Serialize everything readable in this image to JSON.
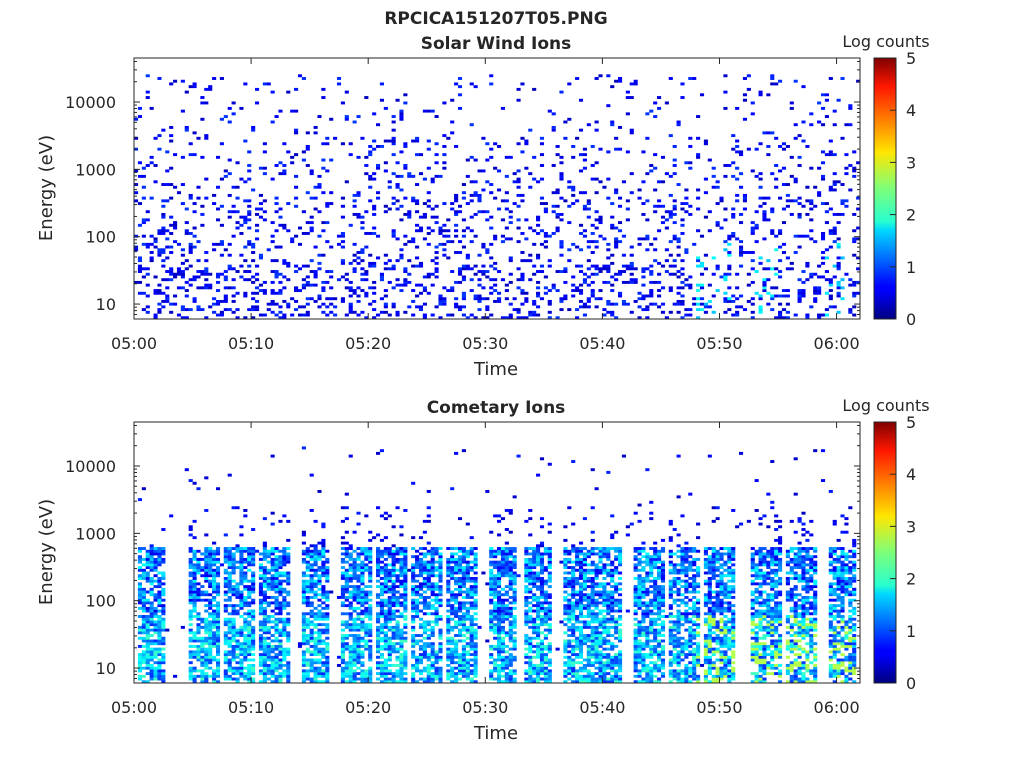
{
  "figure": {
    "title": "RPCICA151207T05.PNG"
  },
  "chart_data": [
    {
      "type": "heatmap",
      "title": "Solar Wind Ions",
      "xlabel": "Time",
      "ylabel": "Energy (eV)",
      "y_scale": "log",
      "x_range_minutes": [
        0,
        62
      ],
      "ylim": [
        6,
        45000
      ],
      "x_ticks": [
        {
          "minute": 0,
          "label": "05:00"
        },
        {
          "minute": 10,
          "label": "05:10"
        },
        {
          "minute": 20,
          "label": "05:20"
        },
        {
          "minute": 30,
          "label": "05:30"
        },
        {
          "minute": 40,
          "label": "05:40"
        },
        {
          "minute": 50,
          "label": "05:50"
        },
        {
          "minute": 60,
          "label": "06:00"
        }
      ],
      "y_ticks": [
        {
          "value": 10,
          "label": "10"
        },
        {
          "value": 100,
          "label": "100"
        },
        {
          "value": 1000,
          "label": "1000"
        },
        {
          "value": 10000,
          "label": "10000"
        }
      ],
      "colorbar": {
        "label": "Log counts",
        "range": [
          0,
          5
        ],
        "ticks": [
          "0",
          "1",
          "2",
          "3",
          "4",
          "5"
        ],
        "colormap": "jet"
      },
      "grid": false,
      "description_seed": 7,
      "pattern": "solar"
    },
    {
      "type": "heatmap",
      "title": "Cometary Ions",
      "xlabel": "Time",
      "ylabel": "Energy (eV)",
      "y_scale": "log",
      "x_range_minutes": [
        0,
        62
      ],
      "ylim": [
        6,
        45000
      ],
      "x_ticks": [
        {
          "minute": 0,
          "label": "05:00"
        },
        {
          "minute": 10,
          "label": "05:10"
        },
        {
          "minute": 20,
          "label": "05:20"
        },
        {
          "minute": 30,
          "label": "05:30"
        },
        {
          "minute": 40,
          "label": "05:40"
        },
        {
          "minute": 50,
          "label": "05:50"
        },
        {
          "minute": 60,
          "label": "06:00"
        }
      ],
      "y_ticks": [
        {
          "value": 10,
          "label": "10"
        },
        {
          "value": 100,
          "label": "100"
        },
        {
          "value": 1000,
          "label": "1000"
        },
        {
          "value": 10000,
          "label": "10000"
        }
      ],
      "colorbar": {
        "label": "Log counts",
        "range": [
          0,
          5
        ],
        "ticks": [
          "0",
          "1",
          "2",
          "3",
          "4",
          "5"
        ],
        "colormap": "jet"
      },
      "grid": false,
      "burst_minutes": [
        1.5,
        6,
        9,
        12,
        15.5,
        19,
        22,
        25,
        28,
        31.5,
        34.5,
        38,
        40.5,
        44,
        47,
        50,
        54,
        57,
        60.5
      ],
      "pattern": "cometary"
    }
  ]
}
